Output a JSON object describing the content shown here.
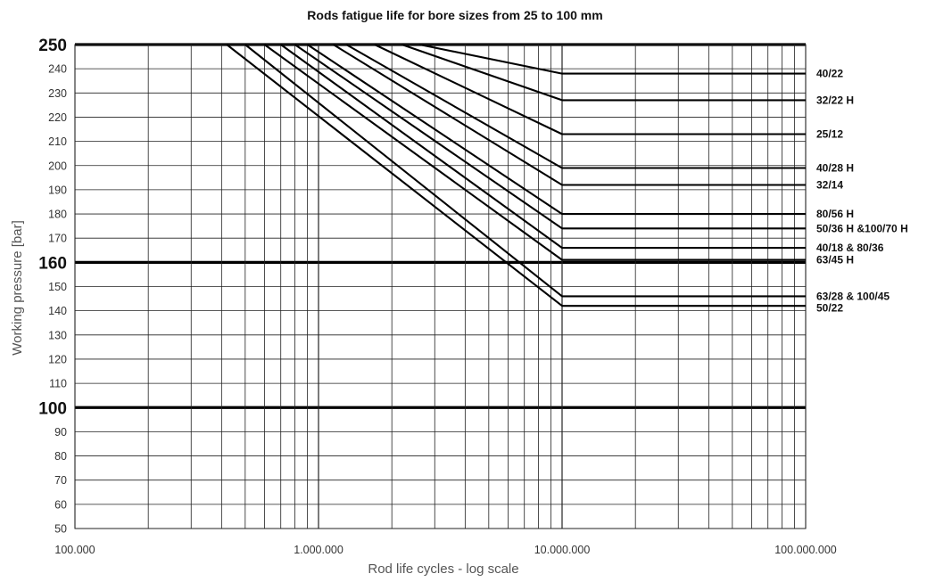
{
  "chart_data": {
    "type": "line",
    "title": "Rods fatigue life for bore sizes from 25 to 100 mm",
    "xlabel": "Rod life cycles - log scale",
    "ylabel": "Working pressure [bar]",
    "xscale": "log",
    "xlim": [
      100000,
      100000000
    ],
    "ylim": [
      50,
      250
    ],
    "grid": true,
    "legend": "labels at right end of each series",
    "x_tick_labels": [
      "100.000",
      "1.000.000",
      "10.000.000",
      "100.000.000"
    ],
    "y_tick_labels": [
      "50",
      "60",
      "70",
      "80",
      "90",
      "100",
      "110",
      "120",
      "130",
      "140",
      "150",
      "160",
      "170",
      "180",
      "190",
      "200",
      "210",
      "220",
      "230",
      "240",
      "250"
    ],
    "y_major_ticks": [
      100,
      160,
      250
    ],
    "series": [
      {
        "name": "40/22",
        "x": [
          2600000,
          10000000,
          100000000
        ],
        "y": [
          250,
          238,
          238
        ]
      },
      {
        "name": "32/22 H",
        "x": [
          2200000,
          10000000,
          100000000
        ],
        "y": [
          250,
          227,
          227
        ]
      },
      {
        "name": "25/12",
        "x": [
          1700000,
          10000000,
          100000000
        ],
        "y": [
          250,
          213,
          213
        ]
      },
      {
        "name": "40/28 H",
        "x": [
          1300000,
          10000000,
          100000000
        ],
        "y": [
          250,
          199,
          199
        ]
      },
      {
        "name": "32/14",
        "x": [
          1150000,
          10000000,
          100000000
        ],
        "y": [
          250,
          192,
          192
        ]
      },
      {
        "name": "80/56 H",
        "x": [
          900000,
          10000000,
          100000000
        ],
        "y": [
          250,
          180,
          180
        ]
      },
      {
        "name": "50/36 H &100/70 H",
        "x": [
          800000,
          10000000,
          100000000
        ],
        "y": [
          250,
          174,
          174
        ]
      },
      {
        "name": "40/18 & 80/36",
        "x": [
          700000,
          10000000,
          100000000
        ],
        "y": [
          250,
          166,
          166
        ]
      },
      {
        "name": "63/45 H",
        "x": [
          600000,
          10000000,
          100000000
        ],
        "y": [
          250,
          161,
          161
        ]
      },
      {
        "name": "63/28 & 100/45",
        "x": [
          500000,
          10000000,
          100000000
        ],
        "y": [
          250,
          146,
          146
        ]
      },
      {
        "name": "50/22",
        "x": [
          420000,
          10000000,
          100000000
        ],
        "y": [
          250,
          142,
          142
        ]
      }
    ]
  }
}
